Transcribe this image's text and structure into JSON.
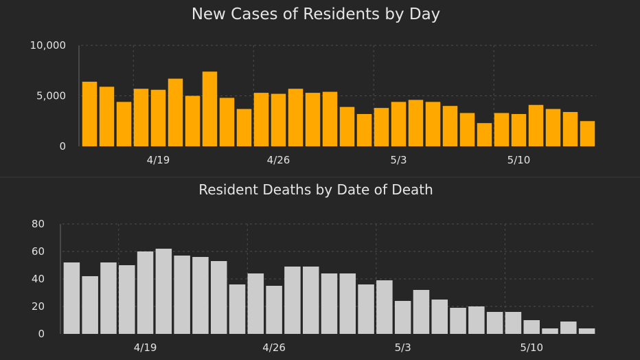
{
  "chart_data": [
    {
      "type": "bar",
      "title": "New Cases of Residents by Day",
      "xlabel": "",
      "ylabel": "",
      "ylim": [
        0,
        10000
      ],
      "yticks": [
        0,
        5000,
        10000
      ],
      "ytick_labels": [
        "0",
        "5,000",
        "10,000"
      ],
      "xtick_labels": [
        {
          "label": "4/19",
          "index": 4
        },
        {
          "label": "4/26",
          "index": 11
        },
        {
          "label": "5/3",
          "index": 18
        },
        {
          "label": "5/10",
          "index": 25
        }
      ],
      "grid": true,
      "color": "#ffa800",
      "values": [
        6400,
        5900,
        4400,
        5700,
        5600,
        6700,
        5000,
        7400,
        4800,
        3700,
        5300,
        5200,
        5700,
        5300,
        5400,
        3900,
        3200,
        3800,
        4400,
        4600,
        4400,
        4000,
        3300,
        2300,
        3300,
        3200,
        4100,
        3700,
        3400,
        2500
      ]
    },
    {
      "type": "bar",
      "title": "Resident Deaths by Date of Death",
      "xlabel": "",
      "ylabel": "",
      "ylim": [
        0,
        80
      ],
      "yticks": [
        0,
        20,
        40,
        60,
        80
      ],
      "ytick_labels": [
        "0",
        "20",
        "40",
        "60",
        "80"
      ],
      "xtick_labels": [
        {
          "label": "4/19",
          "index": 4
        },
        {
          "label": "4/26",
          "index": 11
        },
        {
          "label": "5/3",
          "index": 18
        },
        {
          "label": "5/10",
          "index": 25
        }
      ],
      "grid": true,
      "color": "#cccccc",
      "values": [
        52,
        42,
        52,
        50,
        60,
        62,
        57,
        56,
        53,
        36,
        44,
        35,
        49,
        49,
        44,
        44,
        36,
        39,
        24,
        32,
        25,
        19,
        20,
        16,
        16,
        10,
        4,
        9,
        4
      ]
    }
  ]
}
